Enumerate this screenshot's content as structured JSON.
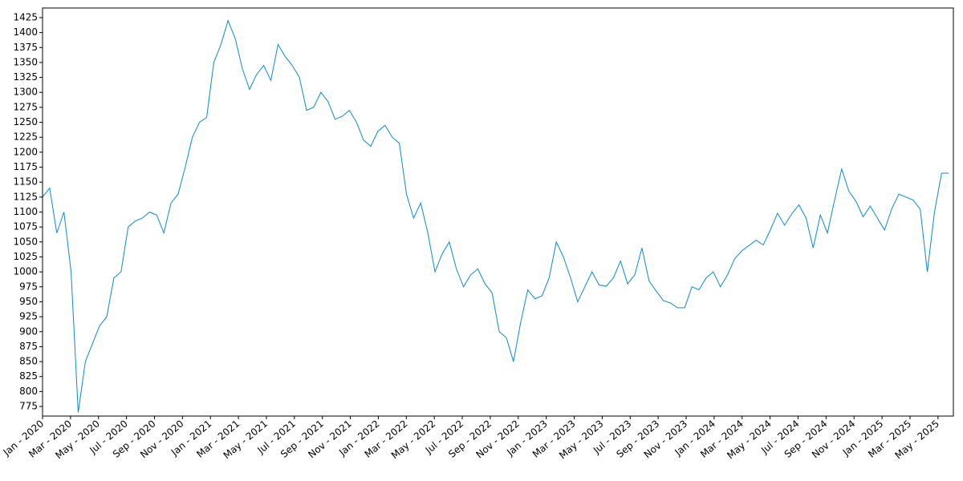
{
  "chart_data": {
    "type": "line",
    "x": [
      0,
      0.51,
      1.02,
      1.53,
      2.04,
      2.55,
      3.06,
      3.57,
      4.08,
      4.59,
      5.1,
      5.61,
      6.12,
      6.63,
      7.14,
      7.65,
      8.16,
      8.67,
      9.18,
      9.69,
      10.2,
      10.71,
      11.22,
      11.73,
      12.24,
      12.75,
      13.26,
      13.77,
      14.28,
      14.79,
      15.3,
      15.81,
      16.32,
      16.83,
      17.34,
      17.85,
      18.36,
      18.87,
      19.38,
      19.89,
      20.4,
      20.91,
      21.42,
      21.93,
      22.44,
      22.95,
      23.46,
      23.97,
      24.48,
      24.99,
      25.5,
      26.01,
      26.52,
      27.03,
      27.54,
      28.05,
      28.56,
      29.07,
      29.58,
      30.09,
      30.6,
      31.11,
      31.62,
      32.13,
      32.64,
      33.15,
      33.66,
      34.17,
      34.68,
      35.19,
      35.7,
      36.21,
      36.72,
      37.23,
      37.74,
      38.25,
      38.76,
      39.27,
      39.78,
      40.29,
      40.8,
      41.31,
      41.82,
      42.33,
      42.84,
      43.35,
      43.86,
      44.37,
      44.88,
      45.39,
      45.9,
      46.41,
      46.92,
      47.43,
      47.94,
      48.45,
      48.96,
      49.47,
      49.98,
      50.49,
      51,
      51.51,
      52.02,
      52.53,
      53.04,
      53.55,
      54.06,
      54.57,
      55.08,
      55.59,
      56.1,
      56.61,
      57.12,
      57.63,
      58.14,
      58.65,
      59.16,
      59.67,
      60.18,
      60.69,
      61.2,
      61.71,
      62.22,
      62.73,
      63.24,
      63.75,
      64.26,
      64.77
    ],
    "series": [
      {
        "color": "#0a8ad0",
        "values": [
          1125,
          1140,
          1065,
          1100,
          1000,
          765,
          850,
          880,
          910,
          925,
          990,
          1000,
          1075,
          1085,
          1090,
          1100,
          1095,
          1065,
          1115,
          1130,
          1175,
          1225,
          1250,
          1258,
          1350,
          1380,
          1420,
          1390,
          1340,
          1305,
          1330,
          1345,
          1320,
          1380,
          1360,
          1345,
          1325,
          1270,
          1275,
          1300,
          1285,
          1255,
          1260,
          1270,
          1250,
          1220,
          1210,
          1235,
          1245,
          1225,
          1215,
          1130,
          1090,
          1115,
          1065,
          1000,
          1030,
          1050,
          1005,
          975,
          995,
          1005,
          980,
          965,
          900,
          890,
          850,
          915,
          970,
          955,
          960,
          990,
          1050,
          1025,
          990,
          950,
          975,
          1000,
          978,
          976,
          990,
          1018,
          980,
          995,
          1040,
          985,
          968,
          952,
          948,
          940,
          940,
          975,
          970,
          990,
          1000,
          975,
          995,
          1022,
          1035,
          1044,
          1053,
          1045,
          1070,
          1098,
          1078,
          1097,
          1112,
          1090,
          1040,
          1095,
          1065,
          1120,
          1172,
          1135,
          1118,
          1092,
          1110,
          1090,
          1070,
          1105,
          1130,
          1125,
          1120,
          1105,
          1000,
          1100,
          1165,
          1165
        ]
      }
    ],
    "xlim": [
      0,
      65.1
    ],
    "xticks": [
      {
        "value": 0,
        "label": "Jan - 2020"
      },
      {
        "value": 2,
        "label": "Mar - 2020"
      },
      {
        "value": 4,
        "label": "May - 2020"
      },
      {
        "value": 6,
        "label": "Jul - 2020"
      },
      {
        "value": 8,
        "label": "Sep - 2020"
      },
      {
        "value": 10,
        "label": "Nov - 2020"
      },
      {
        "value": 12,
        "label": "Jan - 2021"
      },
      {
        "value": 14,
        "label": "Mar - 2021"
      },
      {
        "value": 16,
        "label": "May - 2021"
      },
      {
        "value": 18,
        "label": "Jul - 2021"
      },
      {
        "value": 20,
        "label": "Sep - 2021"
      },
      {
        "value": 22,
        "label": "Nov - 2021"
      },
      {
        "value": 24,
        "label": "Jan - 2022"
      },
      {
        "value": 26,
        "label": "Mar - 2022"
      },
      {
        "value": 28,
        "label": "May - 2022"
      },
      {
        "value": 30,
        "label": "Jul - 2022"
      },
      {
        "value": 32,
        "label": "Sep - 2022"
      },
      {
        "value": 34,
        "label": "Nov - 2022"
      },
      {
        "value": 36,
        "label": "Jan - 2023"
      },
      {
        "value": 38,
        "label": "Mar - 2023"
      },
      {
        "value": 40,
        "label": "May - 2023"
      },
      {
        "value": 42,
        "label": "Jul - 2023"
      },
      {
        "value": 44,
        "label": "Sep - 2023"
      },
      {
        "value": 46,
        "label": "Nov - 2023"
      },
      {
        "value": 48,
        "label": "Jan - 2024"
      },
      {
        "value": 50,
        "label": "Mar - 2024"
      },
      {
        "value": 52,
        "label": "May - 2024"
      },
      {
        "value": 54,
        "label": "Jul - 2024"
      },
      {
        "value": 56,
        "label": "Sep - 2024"
      },
      {
        "value": 58,
        "label": "Nov - 2024"
      },
      {
        "value": 60,
        "label": "Jan - 2025"
      },
      {
        "value": 62,
        "label": "Mar - 2025"
      },
      {
        "value": 64,
        "label": "May - 2025"
      }
    ],
    "ylim": [
      759,
      1441
    ],
    "yticks": [
      775,
      800,
      825,
      850,
      875,
      900,
      925,
      950,
      975,
      1000,
      1025,
      1050,
      1075,
      1100,
      1125,
      1150,
      1175,
      1200,
      1225,
      1250,
      1275,
      1300,
      1325,
      1350,
      1375,
      1400,
      1425
    ]
  }
}
